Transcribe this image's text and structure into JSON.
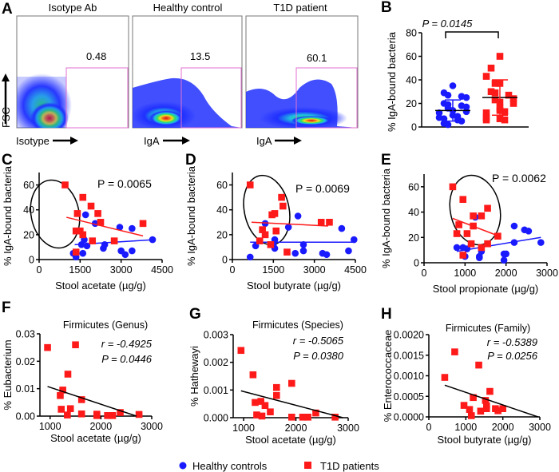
{
  "figure": {
    "colors": {
      "healthy": "#1a1aff",
      "t1d": "#ff1a1a",
      "gate": "#e070d0",
      "axis": "#000000"
    },
    "legend": [
      {
        "label": "Healthy controls",
        "marker": "circle",
        "color": "#1a1aff"
      },
      {
        "label": "T1D patients",
        "marker": "square",
        "color": "#ff1a1a"
      }
    ]
  },
  "chart_data": [
    {
      "panel": "A",
      "type": "flow-cytometry-density",
      "ylabel": "FSC",
      "plots": [
        {
          "title": "Isotype Ab",
          "xlabel": "Isotype",
          "gate_percent": "0.48"
        },
        {
          "title": "Healthy control",
          "xlabel": "IgA",
          "gate_percent": "13.5"
        },
        {
          "title": "T1D patient",
          "xlabel": "IgA",
          "gate_percent": "60.1"
        }
      ]
    },
    {
      "panel": "B",
      "type": "scatter",
      "ylabel": "% IgA-bound bacteria",
      "ylim": [
        0,
        80
      ],
      "yticks": [
        "0",
        "20",
        "40",
        "60",
        "80"
      ],
      "annotation": "P = 0.0145",
      "groups": [
        {
          "name": "Healthy controls",
          "mean": 14,
          "sd_low": 5,
          "sd_high": 23,
          "values": [
            35,
            29,
            27,
            26,
            25,
            20,
            19,
            18,
            17,
            16,
            14,
            13,
            12,
            10,
            9,
            8,
            7,
            6,
            5,
            3,
            2
          ]
        },
        {
          "name": "T1D patients",
          "mean": 25,
          "sd_low": 10,
          "sd_high": 40,
          "values": [
            60,
            50,
            43,
            37,
            37,
            30,
            29,
            27,
            24,
            23,
            21,
            20,
            16,
            14,
            13,
            12,
            8,
            7,
            6,
            6
          ]
        }
      ]
    },
    {
      "panel": "C",
      "type": "scatter",
      "xlabel": "Stool acetate (µg/g)",
      "ylabel": "% IgA-bound bacteria",
      "xlim": [
        0,
        4500
      ],
      "ylim": [
        0,
        70
      ],
      "xticks": [
        "0",
        "1500",
        "3000",
        "4500"
      ],
      "yticks": [
        "0",
        "20",
        "40",
        "60"
      ],
      "annotation": "P = 0.0065",
      "series": [
        {
          "name": "Healthy controls",
          "points": [
            [
              1700,
              36
            ],
            [
              2050,
              29
            ],
            [
              2950,
              26
            ],
            [
              3400,
              25
            ],
            [
              4150,
              16
            ],
            [
              1650,
              16
            ],
            [
              1550,
              12
            ],
            [
              1750,
              11
            ],
            [
              2400,
              12
            ],
            [
              2350,
              9
            ],
            [
              3000,
              7
            ],
            [
              3400,
              7
            ],
            [
              1600,
              5
            ],
            [
              1250,
              5
            ],
            [
              3150,
              4
            ],
            [
              1350,
              2
            ]
          ],
          "fit": [
            [
              1300,
              12
            ],
            [
              4200,
              16
            ]
          ]
        },
        {
          "name": "T1D patients",
          "points": [
            [
              950,
              60
            ],
            [
              1600,
              50
            ],
            [
              1900,
              43
            ],
            [
              1400,
              37
            ],
            [
              2150,
              37
            ],
            [
              2250,
              30
            ],
            [
              3800,
              29
            ],
            [
              1350,
              23
            ],
            [
              1500,
              23
            ],
            [
              1600,
              20
            ],
            [
              1950,
              15
            ],
            [
              2750,
              15
            ],
            [
              1350,
              6
            ]
          ],
          "fit": [
            [
              1000,
              34
            ],
            [
              3800,
              19
            ]
          ]
        }
      ]
    },
    {
      "panel": "D",
      "type": "scatter",
      "xlabel": "Stool butyrate (µg/g)",
      "ylabel": "% IgA-bound bacteria",
      "xlim": [
        0,
        4500
      ],
      "ylim": [
        0,
        70
      ],
      "xticks": [
        "0",
        "1500",
        "3000",
        "4500"
      ],
      "yticks": [
        "0",
        "20",
        "40",
        "60"
      ],
      "annotation": "P = 0.0069",
      "series": [
        {
          "name": "Healthy controls",
          "points": [
            [
              2400,
              35
            ],
            [
              1200,
              29
            ],
            [
              2050,
              26
            ],
            [
              4000,
              25
            ],
            [
              4450,
              16
            ],
            [
              1550,
              16
            ],
            [
              1500,
              12
            ],
            [
              2600,
              12
            ],
            [
              850,
              11
            ],
            [
              1550,
              9
            ],
            [
              4250,
              7
            ],
            [
              2600,
              7
            ],
            [
              2300,
              5
            ],
            [
              3300,
              5
            ],
            [
              3450,
              4
            ],
            [
              650,
              2
            ]
          ],
          "fit": [
            [
              650,
              14
            ],
            [
              4450,
              14
            ]
          ]
        },
        {
          "name": "T1D patients",
          "points": [
            [
              650,
              60
            ],
            [
              1800,
              50
            ],
            [
              1850,
              43
            ],
            [
              1550,
              37
            ],
            [
              1450,
              36
            ],
            [
              3250,
              30
            ],
            [
              3550,
              30
            ],
            [
              1100,
              24
            ],
            [
              1600,
              23
            ],
            [
              1200,
              20
            ],
            [
              1000,
              15
            ],
            [
              1400,
              12
            ],
            [
              2000,
              6
            ]
          ],
          "fit": [
            [
              700,
              30
            ],
            [
              3500,
              27
            ]
          ]
        }
      ]
    },
    {
      "panel": "E",
      "type": "scatter",
      "xlabel": "Stool propionate (µg/g)",
      "ylabel": "% IgA-bound bacteria",
      "xlim": [
        0,
        3000
      ],
      "ylim": [
        0,
        70
      ],
      "xticks": [
        "0",
        "1000",
        "2000",
        "3000"
      ],
      "yticks": [
        "0",
        "20",
        "40",
        "60"
      ],
      "annotation": "P = 0.0062",
      "series": [
        {
          "name": "Healthy controls",
          "points": [
            [
              1250,
              36
            ],
            [
              2200,
              29
            ],
            [
              2450,
              26
            ],
            [
              2550,
              25
            ],
            [
              2850,
              16
            ],
            [
              2200,
              16
            ],
            [
              800,
              12
            ],
            [
              950,
              12
            ],
            [
              1050,
              11
            ],
            [
              1400,
              9
            ],
            [
              1950,
              7
            ],
            [
              2000,
              7
            ],
            [
              1350,
              5
            ],
            [
              1000,
              5
            ],
            [
              1350,
              4
            ],
            [
              1950,
              2
            ]
          ],
          "fit": [
            [
              800,
              9
            ],
            [
              2850,
              20
            ]
          ]
        },
        {
          "name": "T1D patients",
          "points": [
            [
              700,
              60
            ],
            [
              950,
              50
            ],
            [
              1550,
              43
            ],
            [
              1200,
              37
            ],
            [
              1400,
              37
            ],
            [
              850,
              30
            ],
            [
              1200,
              29
            ],
            [
              800,
              23
            ],
            [
              1050,
              23
            ],
            [
              1800,
              21
            ],
            [
              1150,
              15
            ],
            [
              1550,
              15
            ],
            [
              1400,
              12
            ],
            [
              950,
              6
            ]
          ],
          "fit": [
            [
              700,
              35
            ],
            [
              1750,
              22
            ]
          ]
        }
      ]
    },
    {
      "panel": "F",
      "type": "scatter",
      "title": "Firmicutes (Genus)",
      "xlabel": "Stool acetate (µg/g)",
      "ylabel": "% Eubacterium",
      "xlim": [
        800,
        3000
      ],
      "ylim": [
        0,
        0.03
      ],
      "xticks": [
        "1000",
        "2000",
        "3000"
      ],
      "yticks": [
        "0.00",
        "0.01",
        "0.02",
        "0.03"
      ],
      "r": "r = -0.4925",
      "p": "P = 0.0446",
      "series": [
        {
          "name": "T1D patients",
          "points": [
            [
              950,
              0.025
            ],
            [
              1500,
              0.026
            ],
            [
              1350,
              0.0153
            ],
            [
              1250,
              0.0095
            ],
            [
              1200,
              0.0075
            ],
            [
              1620,
              0.006
            ],
            [
              1400,
              0.0027
            ],
            [
              1220,
              0.0025
            ],
            [
              2380,
              0.0013
            ],
            [
              1620,
              0.0008
            ],
            [
              1920,
              0.0007
            ],
            [
              2750,
              0.0006
            ],
            [
              1340,
              0.0004
            ],
            [
              1920,
              0.0002
            ],
            [
              2130,
              0.0002
            ],
            [
              2230,
              0.0002
            ]
          ],
          "fit": [
            [
              950,
              0.0108
            ],
            [
              2700,
              0.0
            ]
          ]
        }
      ]
    },
    {
      "panel": "G",
      "type": "scatter",
      "title": "Firmicutes (Species)",
      "xlabel": "Stool acetate (µg/g)",
      "ylabel": "% Hathewayi",
      "xlim": [
        800,
        3000
      ],
      "ylim": [
        0,
        0.003
      ],
      "xticks": [
        "1000",
        "2000",
        "3000"
      ],
      "yticks": [
        "0.000",
        "0.001",
        "0.002",
        "0.003"
      ],
      "r": "r = -0.5065",
      "p": "P = 0.0380",
      "series": [
        {
          "name": "T1D patients",
          "points": [
            [
              950,
              0.00243
            ],
            [
              1180,
              0.00155
            ],
            [
              1920,
              0.00124
            ],
            [
              1630,
              0.00109
            ],
            [
              1630,
              0.0008
            ],
            [
              1330,
              0.00059
            ],
            [
              1220,
              0.00055
            ],
            [
              1410,
              0.00044
            ],
            [
              1510,
              0.00021
            ],
            [
              2380,
              0.00017
            ],
            [
              1250,
              0.0001
            ],
            [
              1350,
              6e-05
            ],
            [
              1920,
              2e-05
            ],
            [
              2130,
              2e-05
            ],
            [
              2230,
              2e-05
            ],
            [
              2750,
              2e-05
            ]
          ],
          "fit": [
            [
              950,
              0.00097
            ],
            [
              2900,
              0.0
            ]
          ]
        }
      ]
    },
    {
      "panel": "H",
      "type": "scatter",
      "title": "Firmicutes (Family)",
      "xlabel": "Stool butyrate (µg/g)",
      "ylabel": "% Enterococcaceae",
      "xlim": [
        0,
        3000
      ],
      "ylim": [
        0,
        0.002
      ],
      "xticks": [
        "0",
        "1000",
        "2000",
        "3000"
      ],
      "yticks": [
        "0.0000",
        "0.0005",
        "0.0010",
        "0.0015",
        "0.0020"
      ],
      "r": "r = -0.5389",
      "p": "P = 0.0256",
      "series": [
        {
          "name": "T1D patients",
          "points": [
            [
              700,
              0.00158
            ],
            [
              1350,
              0.00126
            ],
            [
              430,
              0.00096
            ],
            [
              1650,
              0.00062
            ],
            [
              1200,
              0.00047
            ],
            [
              1530,
              0.0004
            ],
            [
              950,
              0.00028
            ],
            [
              1560,
              0.00027
            ],
            [
              1560,
              0.0002
            ],
            [
              1800,
              0.0002
            ],
            [
              2000,
              0.0002
            ],
            [
              1100,
              0.00018
            ],
            [
              1870,
              0.00015
            ],
            [
              1400,
              0.00014
            ],
            [
              1150,
              3e-05
            ]
          ],
          "fit": [
            [
              430,
              0.00077
            ],
            [
              2950,
              0.0
            ]
          ]
        }
      ]
    }
  ]
}
